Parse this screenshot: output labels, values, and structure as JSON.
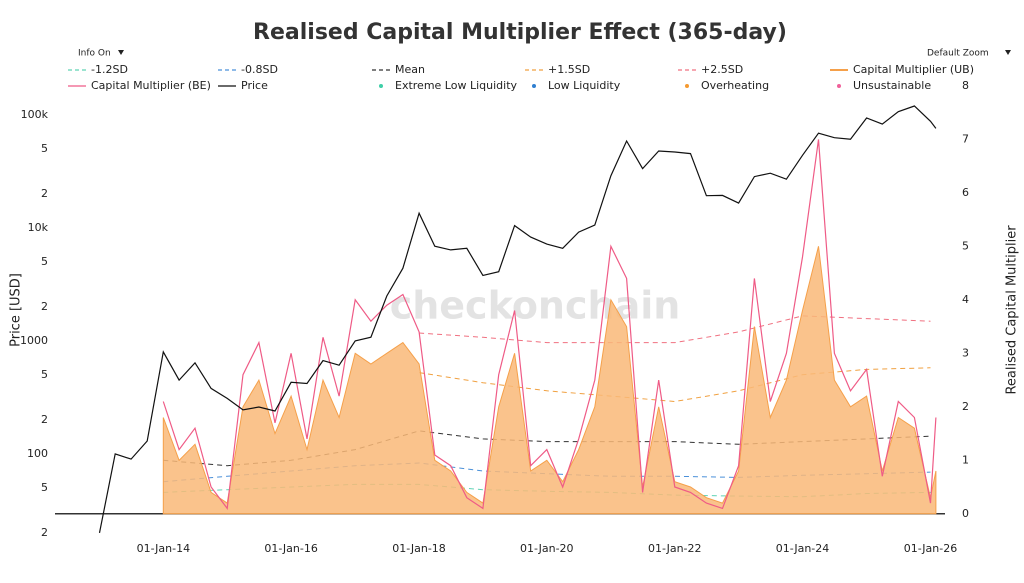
{
  "chart_data": {
    "type": "line",
    "title": "Realised Capital Multiplier Effect (365-day)",
    "info_toggle": "Info On",
    "zoom_toggle": "Default Zoom",
    "watermark": "checkonchain",
    "y_label": "Price [USD]",
    "y2_label": "Realised Capital Multiplier",
    "log_y": true,
    "grid": false,
    "xlim": [
      "2012-04-22",
      "2026-03-25"
    ],
    "xticks": [
      {
        "value": "2014-01-01",
        "label": "01-Jan-14"
      },
      {
        "value": "2016-01-01",
        "label": "01-Jan-16"
      },
      {
        "value": "2018-01-01",
        "label": "01-Jan-18"
      },
      {
        "value": "2020-01-01",
        "label": "01-Jan-20"
      },
      {
        "value": "2022-01-01",
        "label": "01-Jan-22"
      },
      {
        "value": "2024-01-01",
        "label": "01-Jan-24"
      },
      {
        "value": "2026-01-01",
        "label": "01-Jan-26"
      }
    ],
    "ylim": [
      17.3,
      204000
    ],
    "yticks": [
      {
        "value": 20,
        "label": "2"
      },
      {
        "value": 50,
        "label": "5"
      },
      100,
      {
        "value": 200,
        "label": "2"
      },
      {
        "value": 500,
        "label": "5"
      },
      1000,
      {
        "value": 2000,
        "label": "2"
      },
      {
        "value": 5000,
        "label": "5"
      },
      {
        "value": 10000,
        "label": "10k"
      },
      {
        "value": 20000,
        "label": "2"
      },
      {
        "value": 50000,
        "label": "5"
      },
      {
        "value": 100000,
        "label": "100k"
      }
    ],
    "y2lim": [
      -0.49,
      8.11
    ],
    "y2ticks": [
      0,
      1,
      2,
      3,
      4,
      5,
      6,
      7,
      8
    ],
    "series": [
      {
        "name": "-1.2SD",
        "color": "#5fd3b5",
        "dash": true,
        "axis": "y2",
        "x": [
          "2014-01-01",
          "2015-01-01",
          "2016-01-01",
          "2017-01-01",
          "2018-01-01",
          "2019-01-01",
          "2020-01-01",
          "2021-01-01",
          "2022-01-01",
          "2023-01-01",
          "2024-01-01",
          "2025-01-01",
          "2026-01-01"
        ],
        "values": [
          0.4,
          0.45,
          0.5,
          0.55,
          0.55,
          0.45,
          0.42,
          0.4,
          0.35,
          0.33,
          0.32,
          0.38,
          0.4
        ]
      },
      {
        "name": "-0.8SD",
        "color": "#4a90d9",
        "dash": true,
        "axis": "y2",
        "x": [
          "2014-01-01",
          "2015-01-01",
          "2016-01-01",
          "2017-01-01",
          "2018-01-01",
          "2019-01-01",
          "2020-01-01",
          "2021-01-01",
          "2022-01-01",
          "2023-01-01",
          "2024-01-01",
          "2025-01-01",
          "2026-01-01"
        ],
        "values": [
          0.6,
          0.7,
          0.8,
          0.9,
          0.95,
          0.8,
          0.75,
          0.7,
          0.7,
          0.68,
          0.72,
          0.75,
          0.78
        ]
      },
      {
        "name": "Mean",
        "color": "#333333",
        "dash": true,
        "axis": "y2",
        "x": [
          "2014-01-01",
          "2015-01-01",
          "2016-01-01",
          "2017-01-01",
          "2018-01-01",
          "2019-01-01",
          "2020-01-01",
          "2021-01-01",
          "2022-01-01",
          "2023-01-01",
          "2024-01-01",
          "2025-01-01",
          "2026-01-01"
        ],
        "values": [
          1.0,
          0.9,
          1.0,
          1.2,
          1.55,
          1.4,
          1.35,
          1.35,
          1.35,
          1.3,
          1.35,
          1.4,
          1.45
        ]
      },
      {
        "name": "+1.5SD",
        "color": "#f0a040",
        "dash": true,
        "axis": "y2",
        "x": [
          "2014-01-01",
          "2015-01-01",
          "2016-01-01",
          "2017-01-01",
          "2018-01-01",
          "2019-01-01",
          "2020-01-01",
          "2021-01-01",
          "2022-01-01",
          "2023-01-01",
          "2024-01-01",
          "2025-01-01",
          "2026-01-01"
        ],
        "values": [
          null,
          null,
          null,
          null,
          2.64,
          2.45,
          2.3,
          2.2,
          2.1,
          2.3,
          2.6,
          2.7,
          2.73
        ]
      },
      {
        "name": "+2.5SD",
        "color": "#f07080",
        "dash": true,
        "axis": "y2",
        "x": [
          "2014-01-01",
          "2015-01-01",
          "2016-01-01",
          "2017-01-01",
          "2018-01-01",
          "2019-01-01",
          "2020-01-01",
          "2021-01-01",
          "2022-01-01",
          "2023-01-01",
          "2024-01-01",
          "2025-01-01",
          "2026-01-01"
        ],
        "values": [
          null,
          null,
          null,
          null,
          3.38,
          3.3,
          3.2,
          3.2,
          3.2,
          3.4,
          3.7,
          3.65,
          3.6
        ]
      },
      {
        "name": "Capital Multiplier (UB)",
        "color": "#f5a04a",
        "fill": "#f9b978",
        "axis": "y2",
        "x": [
          "2014-01-01",
          "2014-04-01",
          "2014-07-01",
          "2014-10-01",
          "2015-01-01",
          "2015-04-01",
          "2015-07-01",
          "2015-10-01",
          "2016-01-01",
          "2016-04-01",
          "2016-07-01",
          "2016-10-01",
          "2017-01-01",
          "2017-04-01",
          "2017-07-01",
          "2017-10-01",
          "2018-01-01",
          "2018-04-01",
          "2018-07-01",
          "2018-10-01",
          "2019-01-01",
          "2019-04-01",
          "2019-07-01",
          "2019-10-01",
          "2020-01-01",
          "2020-04-01",
          "2020-07-01",
          "2020-10-01",
          "2021-01-01",
          "2021-04-01",
          "2021-07-01",
          "2021-10-01",
          "2022-01-01",
          "2022-04-01",
          "2022-07-01",
          "2022-10-01",
          "2023-01-01",
          "2023-04-01",
          "2023-07-01",
          "2023-10-01",
          "2024-01-01",
          "2024-04-01",
          "2024-07-01",
          "2024-10-01",
          "2025-01-01",
          "2025-04-01",
          "2025-07-01",
          "2025-10-01",
          "2026-01-01",
          "2026-02-01"
        ],
        "values": [
          1.8,
          1.0,
          1.3,
          0.4,
          0.2,
          2.0,
          2.5,
          1.5,
          2.2,
          1.2,
          2.5,
          1.8,
          3.0,
          2.8,
          3.0,
          3.2,
          2.8,
          1.0,
          0.8,
          0.4,
          0.2,
          2.0,
          3.0,
          0.8,
          1.0,
          0.6,
          1.2,
          2.0,
          4.0,
          3.5,
          0.5,
          2.0,
          0.6,
          0.5,
          0.3,
          0.2,
          0.8,
          3.5,
          1.8,
          2.5,
          3.8,
          5.0,
          2.5,
          2.0,
          2.2,
          0.8,
          1.8,
          1.6,
          0.3,
          0.8
        ]
      },
      {
        "name": "Capital Multiplier (BE)",
        "color": "#ef5b86",
        "axis": "y2",
        "x": [
          "2014-01-01",
          "2014-04-01",
          "2014-07-01",
          "2014-10-01",
          "2015-01-01",
          "2015-04-01",
          "2015-07-01",
          "2015-10-01",
          "2016-01-01",
          "2016-04-01",
          "2016-07-01",
          "2016-10-01",
          "2017-01-01",
          "2017-04-01",
          "2017-07-01",
          "2017-10-01",
          "2018-01-01",
          "2018-04-01",
          "2018-07-01",
          "2018-10-01",
          "2019-01-01",
          "2019-04-01",
          "2019-07-01",
          "2019-10-01",
          "2020-01-01",
          "2020-04-01",
          "2020-07-01",
          "2020-10-01",
          "2021-01-01",
          "2021-04-01",
          "2021-07-01",
          "2021-10-01",
          "2022-01-01",
          "2022-04-01",
          "2022-07-01",
          "2022-10-01",
          "2023-01-01",
          "2023-04-01",
          "2023-07-01",
          "2023-10-01",
          "2024-01-01",
          "2024-04-01",
          "2024-07-01",
          "2024-10-01",
          "2025-01-01",
          "2025-04-01",
          "2025-07-01",
          "2025-10-01",
          "2026-01-01",
          "2026-02-01"
        ],
        "values": [
          2.1,
          1.2,
          1.6,
          0.5,
          0.1,
          2.6,
          3.2,
          1.7,
          3.0,
          1.4,
          3.3,
          2.2,
          4.0,
          3.6,
          3.9,
          4.1,
          3.4,
          1.1,
          0.9,
          0.3,
          0.1,
          2.6,
          3.8,
          0.9,
          1.2,
          0.5,
          1.4,
          2.5,
          5.0,
          4.4,
          0.4,
          2.5,
          0.5,
          0.4,
          0.2,
          0.1,
          0.9,
          4.4,
          2.1,
          3.0,
          4.8,
          7.0,
          3.0,
          2.3,
          2.7,
          0.7,
          2.1,
          1.8,
          0.2,
          1.8
        ]
      },
      {
        "name": "Price",
        "color": "#111111",
        "axis": "y",
        "x": [
          "2013-01-01",
          "2013-04-01",
          "2013-07-01",
          "2013-10-01",
          "2014-01-01",
          "2014-04-01",
          "2014-07-01",
          "2014-10-01",
          "2015-01-01",
          "2015-04-01",
          "2015-07-01",
          "2015-10-01",
          "2016-01-01",
          "2016-04-01",
          "2016-07-01",
          "2016-10-01",
          "2017-01-01",
          "2017-04-01",
          "2017-07-01",
          "2017-10-01",
          "2018-01-01",
          "2018-04-01",
          "2018-07-01",
          "2018-10-01",
          "2019-01-01",
          "2019-04-01",
          "2019-07-01",
          "2019-10-01",
          "2020-01-01",
          "2020-04-01",
          "2020-07-01",
          "2020-10-01",
          "2021-01-01",
          "2021-04-01",
          "2021-07-01",
          "2021-10-01",
          "2022-01-01",
          "2022-04-01",
          "2022-07-01",
          "2022-10-01",
          "2023-01-01",
          "2023-04-01",
          "2023-07-01",
          "2023-10-01",
          "2024-01-01",
          "2024-04-01",
          "2024-07-01",
          "2024-10-01",
          "2025-01-01",
          "2025-04-01",
          "2025-07-01",
          "2025-10-01",
          "2026-01-01",
          "2026-02-01"
        ],
        "values": [
          20,
          100,
          90,
          130,
          800,
          450,
          640,
          380,
          310,
          245,
          260,
          240,
          430,
          420,
          670,
          610,
          1000,
          1080,
          2500,
          4400,
          13500,
          6900,
          6400,
          6600,
          3800,
          4100,
          10500,
          8300,
          7200,
          6600,
          9200,
          10600,
          29000,
          58800,
          33500,
          48000,
          47000,
          45500,
          19300,
          19400,
          16600,
          28500,
          30500,
          27000,
          44000,
          69000,
          63000,
          61000,
          94000,
          83000,
          107000,
          120000,
          88000,
          76000
        ]
      }
    ],
    "markers": [
      {
        "name": "Extreme Low Liquidity",
        "color": "#3fcfa8"
      },
      {
        "name": "Low Liquidity",
        "color": "#2f7fd0"
      },
      {
        "name": "Overheating",
        "color": "#f59a30"
      },
      {
        "name": "Unsustainable",
        "color": "#f0609a"
      }
    ]
  }
}
